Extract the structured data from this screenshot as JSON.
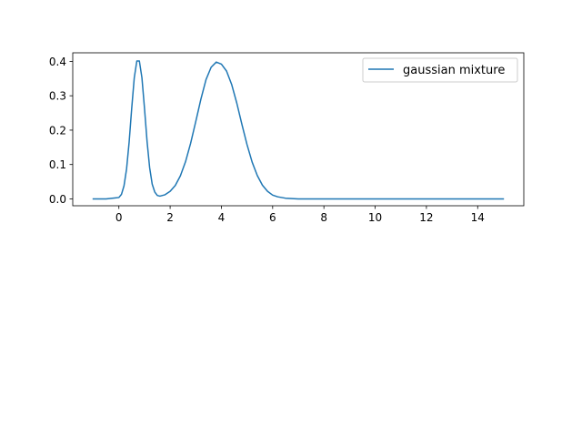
{
  "chart_data": {
    "type": "line",
    "title": "",
    "xlabel": "",
    "ylabel": "",
    "xlim": [
      -1.8,
      15.8
    ],
    "ylim": [
      -0.02,
      0.425
    ],
    "xticks": [
      0,
      2,
      4,
      6,
      8,
      10,
      12,
      14
    ],
    "yticks": [
      0.0,
      0.1,
      0.2,
      0.3,
      0.4
    ],
    "xtick_labels": [
      "0",
      "2",
      "4",
      "6",
      "8",
      "10",
      "12",
      "14"
    ],
    "ytick_labels": [
      "0.0",
      "0.1",
      "0.2",
      "0.3",
      "0.4"
    ],
    "grid": false,
    "legend_position": "top-right",
    "series": [
      {
        "name": "gaussian mixture",
        "color": "#1f77b4",
        "x": [
          -1.0,
          -0.5,
          0.0,
          0.1,
          0.2,
          0.3,
          0.4,
          0.5,
          0.6,
          0.7,
          0.8,
          0.9,
          1.0,
          1.1,
          1.2,
          1.3,
          1.4,
          1.5,
          1.6,
          1.8,
          2.0,
          2.2,
          2.4,
          2.6,
          2.8,
          3.0,
          3.2,
          3.4,
          3.6,
          3.8,
          4.0,
          4.2,
          4.4,
          4.6,
          4.8,
          5.0,
          5.2,
          5.4,
          5.6,
          5.8,
          6.0,
          6.2,
          6.5,
          7.0,
          8.0,
          9.0,
          10.0,
          11.0,
          12.0,
          13.0,
          14.0,
          15.0
        ],
        "y": [
          0.0,
          0.0,
          0.004,
          0.013,
          0.038,
          0.087,
          0.165,
          0.263,
          0.352,
          0.401,
          0.401,
          0.352,
          0.263,
          0.167,
          0.091,
          0.043,
          0.02,
          0.01,
          0.008,
          0.012,
          0.022,
          0.039,
          0.067,
          0.108,
          0.162,
          0.225,
          0.29,
          0.347,
          0.383,
          0.398,
          0.392,
          0.372,
          0.333,
          0.279,
          0.217,
          0.158,
          0.107,
          0.068,
          0.04,
          0.022,
          0.011,
          0.006,
          0.002,
          0.0,
          0.0,
          0.0,
          0.0,
          0.0,
          0.0,
          0.0,
          0.0,
          0.0
        ]
      }
    ]
  }
}
